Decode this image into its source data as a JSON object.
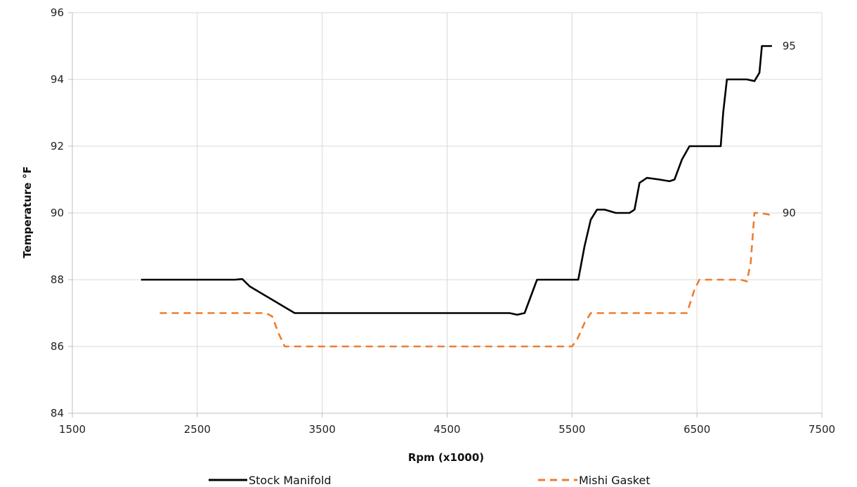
{
  "chart_data": {
    "type": "line",
    "title": "",
    "xlabel": "Rpm (x1000)",
    "ylabel": "Temperature °F",
    "xlim": [
      1500,
      7500
    ],
    "ylim": [
      84,
      96
    ],
    "x_ticks": [
      1500,
      2500,
      3500,
      4500,
      5500,
      6500,
      7500
    ],
    "y_ticks": [
      84,
      86,
      88,
      90,
      92,
      94,
      96
    ],
    "x_tick_labels": [
      "1500",
      "2500",
      "3500",
      "4500",
      "5500",
      "6500",
      "7500"
    ],
    "y_tick_labels": [
      "84",
      "86",
      "88",
      "90",
      "92",
      "94",
      "96"
    ],
    "grid": true,
    "legend_position": "bottom",
    "series": [
      {
        "name": "Stock Manifold",
        "color": "#000000",
        "line_style": "solid",
        "end_label": "95",
        "points": [
          [
            2050,
            88
          ],
          [
            2800,
            88
          ],
          [
            2860,
            88.02
          ],
          [
            2920,
            87.8
          ],
          [
            3280,
            87.0
          ],
          [
            3300,
            87
          ],
          [
            5000,
            87
          ],
          [
            5060,
            86.95
          ],
          [
            5120,
            87.0
          ],
          [
            5180,
            87.6
          ],
          [
            5220,
            88
          ],
          [
            5550,
            88
          ],
          [
            5600,
            89.0
          ],
          [
            5650,
            89.8
          ],
          [
            5700,
            90.1
          ],
          [
            5760,
            90.1
          ],
          [
            5850,
            90.0
          ],
          [
            5960,
            90.0
          ],
          [
            6000,
            90.1
          ],
          [
            6040,
            90.9
          ],
          [
            6100,
            91.05
          ],
          [
            6200,
            91.0
          ],
          [
            6280,
            90.95
          ],
          [
            6320,
            91.0
          ],
          [
            6380,
            91.6
          ],
          [
            6440,
            92.0
          ],
          [
            6500,
            92.0
          ],
          [
            6640,
            92.0
          ],
          [
            6690,
            92.0
          ],
          [
            6710,
            93.0
          ],
          [
            6740,
            94.0
          ],
          [
            6900,
            94.0
          ],
          [
            6960,
            93.95
          ],
          [
            7000,
            94.2
          ],
          [
            7020,
            95.0
          ],
          [
            7100,
            95.0
          ]
        ]
      },
      {
        "name": "Mishi Gasket",
        "color": "#ED7D31",
        "line_style": "dashed",
        "end_label": "90",
        "points": [
          [
            2200,
            87
          ],
          [
            3050,
            87
          ],
          [
            3100,
            86.9
          ],
          [
            3150,
            86.4
          ],
          [
            3200,
            86.0
          ],
          [
            3250,
            86
          ],
          [
            5500,
            86
          ],
          [
            5540,
            86.2
          ],
          [
            5600,
            86.7
          ],
          [
            5650,
            87.0
          ],
          [
            5700,
            87
          ],
          [
            6380,
            87
          ],
          [
            6420,
            87.0
          ],
          [
            6480,
            87.7
          ],
          [
            6520,
            88.0
          ],
          [
            6600,
            88.0
          ],
          [
            6850,
            88.0
          ],
          [
            6900,
            87.95
          ],
          [
            6930,
            88.5
          ],
          [
            6960,
            90.0
          ],
          [
            7000,
            90.0
          ],
          [
            7080,
            89.95
          ],
          [
            7100,
            90.0
          ]
        ]
      }
    ]
  }
}
